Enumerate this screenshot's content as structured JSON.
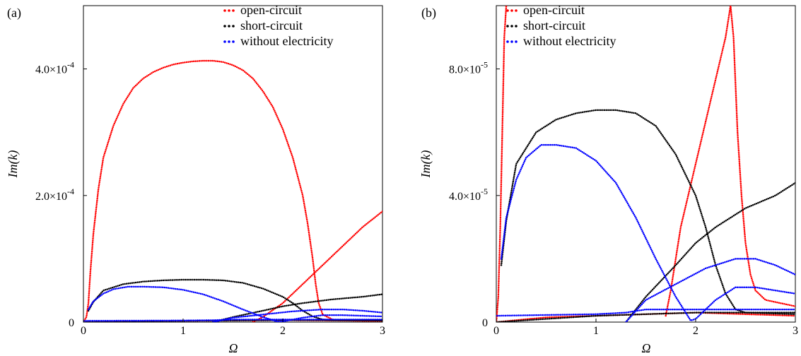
{
  "chart_data": [
    {
      "type": "scatter",
      "panel_label": "(a)",
      "xlabel": "Ω",
      "ylabel": "Im(k)",
      "xlim": [
        0,
        3
      ],
      "ylim": [
        0,
        0.0005
      ],
      "legend_position": "top-right",
      "xticks": [
        {
          "value": 0,
          "label": "0"
        },
        {
          "value": 1,
          "label": "1"
        },
        {
          "value": 2,
          "label": "2"
        },
        {
          "value": 3,
          "label": "3"
        }
      ],
      "yticks": [
        {
          "value": 0,
          "label": "0"
        },
        {
          "value": 0.0002,
          "label": "2.0×10",
          "exp": "-4"
        },
        {
          "value": 0.0004,
          "label": "4.0×10",
          "exp": "-4"
        }
      ],
      "series": [
        {
          "name": "open-circuit",
          "color": "#ff0000",
          "curves": [
            [
              [
                0,
                0
              ],
              [
                0.03,
                8e-06
              ],
              [
                0.05,
                3e-05
              ],
              [
                0.07,
                8e-05
              ],
              [
                0.1,
                0.00014
              ],
              [
                0.15,
                0.00021
              ],
              [
                0.2,
                0.00026
              ],
              [
                0.3,
                0.00031
              ],
              [
                0.4,
                0.000345
              ],
              [
                0.5,
                0.00037
              ],
              [
                0.6,
                0.000385
              ],
              [
                0.7,
                0.000395
              ],
              [
                0.8,
                0.000402
              ],
              [
                0.9,
                0.000407
              ],
              [
                1.0,
                0.00041
              ],
              [
                1.1,
                0.000412
              ],
              [
                1.2,
                0.000413
              ],
              [
                1.3,
                0.000413
              ],
              [
                1.4,
                0.000411
              ],
              [
                1.5,
                0.000406
              ],
              [
                1.6,
                0.000398
              ],
              [
                1.7,
                0.000385
              ],
              [
                1.8,
                0.000365
              ],
              [
                1.9,
                0.00034
              ],
              [
                2.0,
                0.000305
              ],
              [
                2.1,
                0.00026
              ],
              [
                2.2,
                0.0002
              ],
              [
                2.25,
                0.000155
              ],
              [
                2.3,
                0.0001
              ],
              [
                2.33,
                6e-05
              ],
              [
                2.36,
                3e-05
              ],
              [
                2.4,
                1.2e-05
              ],
              [
                2.5,
                4e-06
              ],
              [
                2.6,
                2.5e-06
              ],
              [
                2.8,
                2e-06
              ],
              [
                3.0,
                2e-06
              ]
            ],
            [
              [
                1.7,
                0
              ],
              [
                1.8,
                8e-06
              ],
              [
                2.0,
                3e-05
              ],
              [
                2.2,
                6e-05
              ],
              [
                2.4,
                9e-05
              ],
              [
                2.6,
                0.00012
              ],
              [
                2.8,
                0.00015
              ],
              [
                3.0,
                0.000175
              ]
            ],
            [
              [
                0,
                0
              ],
              [
                0.5,
                1.5e-06
              ],
              [
                1.0,
                2e-06
              ],
              [
                1.5,
                2.5e-06
              ],
              [
                2.0,
                3e-06
              ],
              [
                2.5,
                2.5e-06
              ],
              [
                3.0,
                2e-06
              ]
            ]
          ]
        },
        {
          "name": "short-circuit",
          "color": "#000000",
          "curves": [
            [
              [
                0.05,
                1.8e-05
              ],
              [
                0.1,
                3.2e-05
              ],
              [
                0.2,
                5e-05
              ],
              [
                0.4,
                6e-05
              ],
              [
                0.6,
                6.4e-05
              ],
              [
                0.8,
                6.6e-05
              ],
              [
                1.0,
                6.7e-05
              ],
              [
                1.2,
                6.7e-05
              ],
              [
                1.4,
                6.6e-05
              ],
              [
                1.6,
                6.2e-05
              ],
              [
                1.8,
                5.3e-05
              ],
              [
                2.0,
                4e-05
              ],
              [
                2.1,
                3e-05
              ],
              [
                2.2,
                1.8e-05
              ],
              [
                2.3,
                9e-06
              ],
              [
                2.4,
                4e-06
              ],
              [
                2.5,
                3e-06
              ],
              [
                3.0,
                3e-06
              ]
            ],
            [
              [
                1.3,
                0
              ],
              [
                1.5,
                8e-06
              ],
              [
                1.8,
                1.8e-05
              ],
              [
                2.0,
                2.5e-05
              ],
              [
                2.2,
                3e-05
              ],
              [
                2.5,
                3.6e-05
              ],
              [
                2.8,
                4e-05
              ],
              [
                3.0,
                4.4e-05
              ]
            ],
            [
              [
                0,
                0
              ],
              [
                1.0,
                2e-06
              ],
              [
                1.5,
                2.5e-06
              ],
              [
                2.0,
                3e-06
              ],
              [
                2.5,
                3e-06
              ],
              [
                3.0,
                2.5e-06
              ]
            ]
          ]
        },
        {
          "name": "without electricity",
          "color": "#0000ff",
          "curves": [
            [
              [
                0.05,
                2e-05
              ],
              [
                0.1,
                3.3e-05
              ],
              [
                0.2,
                4.5e-05
              ],
              [
                0.3,
                5.2e-05
              ],
              [
                0.45,
                5.6e-05
              ],
              [
                0.6,
                5.6e-05
              ],
              [
                0.8,
                5.5e-05
              ],
              [
                1.0,
                5.1e-05
              ],
              [
                1.2,
                4.4e-05
              ],
              [
                1.4,
                3.3e-05
              ],
              [
                1.6,
                2e-05
              ],
              [
                1.8,
                8e-06
              ],
              [
                1.95,
                5e-07
              ],
              [
                2.0,
                1e-06
              ],
              [
                2.1,
                4e-06
              ],
              [
                2.2,
                7e-06
              ],
              [
                2.4,
                1.1e-05
              ],
              [
                2.6,
                1.1e-05
              ],
              [
                2.8,
                1e-05
              ],
              [
                3.0,
                9e-06
              ]
            ],
            [
              [
                1.3,
                0
              ],
              [
                1.5,
                7e-06
              ],
              [
                1.8,
                1.2e-05
              ],
              [
                2.1,
                1.7e-05
              ],
              [
                2.4,
                2e-05
              ],
              [
                2.6,
                2e-05
              ],
              [
                2.8,
                1.8e-05
              ],
              [
                3.0,
                1.5e-05
              ]
            ],
            [
              [
                0,
                2e-06
              ],
              [
                1.0,
                2.5e-06
              ],
              [
                1.3,
                3e-06
              ],
              [
                1.5,
                4e-06
              ],
              [
                2.0,
                4e-06
              ],
              [
                2.5,
                4e-06
              ],
              [
                3.0,
                4e-06
              ]
            ]
          ]
        }
      ]
    },
    {
      "type": "scatter",
      "panel_label": "(b)",
      "xlabel": "Ω",
      "ylabel": "Im(k)",
      "xlim": [
        0,
        3
      ],
      "ylim": [
        0,
        0.0001
      ],
      "legend_position": "top-right",
      "xticks": [
        {
          "value": 0,
          "label": "0"
        },
        {
          "value": 1,
          "label": "1"
        },
        {
          "value": 2,
          "label": "2"
        },
        {
          "value": 3,
          "label": "3"
        }
      ],
      "yticks": [
        {
          "value": 0,
          "label": "0"
        },
        {
          "value": 4e-05,
          "label": "4.0×10",
          "exp": "-5"
        },
        {
          "value": 8e-05,
          "label": "8.0×10",
          "exp": "-5"
        }
      ],
      "series": [
        {
          "name": "open-circuit",
          "color": "#ff0000",
          "curves": [
            [
              [
                0,
                0
              ],
              [
                0.02,
                8e-06
              ],
              [
                0.04,
                3e-05
              ],
              [
                0.06,
                6e-05
              ],
              [
                0.08,
                9e-05
              ],
              [
                0.1,
                0.0001
              ]
            ],
            [
              [
                1.7,
                2e-06
              ],
              [
                1.75,
                1e-05
              ],
              [
                1.85,
                3e-05
              ],
              [
                2.0,
                5e-05
              ],
              [
                2.15,
                7e-05
              ],
              [
                2.3,
                9e-05
              ],
              [
                2.35,
                0.0001
              ]
            ],
            [
              [
                2.35,
                0.0001
              ],
              [
                2.38,
                9e-05
              ],
              [
                2.42,
                6e-05
              ],
              [
                2.46,
                4e-05
              ],
              [
                2.5,
                2.5e-05
              ],
              [
                2.55,
                1.5e-05
              ],
              [
                2.6,
                1e-05
              ],
              [
                2.7,
                7e-06
              ],
              [
                3.0,
                5e-06
              ]
            ],
            [
              [
                0,
                0
              ],
              [
                0.5,
                1.5e-06
              ],
              [
                1.0,
                2e-06
              ],
              [
                1.5,
                2.5e-06
              ],
              [
                2.0,
                3e-06
              ],
              [
                2.5,
                2.5e-06
              ],
              [
                3.0,
                2e-06
              ]
            ]
          ]
        },
        {
          "name": "short-circuit",
          "color": "#000000",
          "curves": [
            [
              [
                0.05,
                1.8e-05
              ],
              [
                0.1,
                3.2e-05
              ],
              [
                0.2,
                5e-05
              ],
              [
                0.4,
                6e-05
              ],
              [
                0.6,
                6.4e-05
              ],
              [
                0.8,
                6.6e-05
              ],
              [
                1.0,
                6.7e-05
              ],
              [
                1.2,
                6.7e-05
              ],
              [
                1.4,
                6.6e-05
              ],
              [
                1.6,
                6.2e-05
              ],
              [
                1.8,
                5.3e-05
              ],
              [
                2.0,
                4e-05
              ],
              [
                2.1,
                3e-05
              ],
              [
                2.2,
                1.8e-05
              ],
              [
                2.3,
                9e-06
              ],
              [
                2.4,
                4e-06
              ],
              [
                2.5,
                3e-06
              ],
              [
                3.0,
                3e-06
              ]
            ],
            [
              [
                1.3,
                0
              ],
              [
                1.5,
                8e-06
              ],
              [
                1.8,
                1.8e-05
              ],
              [
                2.0,
                2.5e-05
              ],
              [
                2.2,
                3e-05
              ],
              [
                2.5,
                3.6e-05
              ],
              [
                2.8,
                4e-05
              ],
              [
                3.0,
                4.4e-05
              ]
            ],
            [
              [
                0,
                0
              ],
              [
                1.0,
                2e-06
              ],
              [
                1.5,
                2.5e-06
              ],
              [
                2.0,
                3e-06
              ],
              [
                2.5,
                3e-06
              ],
              [
                3.0,
                2.5e-06
              ]
            ]
          ]
        },
        {
          "name": "without electricity",
          "color": "#0000ff",
          "curves": [
            [
              [
                0.05,
                2e-05
              ],
              [
                0.1,
                3.3e-05
              ],
              [
                0.2,
                4.5e-05
              ],
              [
                0.3,
                5.2e-05
              ],
              [
                0.45,
                5.6e-05
              ],
              [
                0.6,
                5.6e-05
              ],
              [
                0.8,
                5.5e-05
              ],
              [
                1.0,
                5.1e-05
              ],
              [
                1.2,
                4.4e-05
              ],
              [
                1.4,
                3.3e-05
              ],
              [
                1.6,
                2e-05
              ],
              [
                1.8,
                8e-06
              ],
              [
                1.95,
                5e-07
              ],
              [
                2.0,
                1e-06
              ],
              [
                2.1,
                4e-06
              ],
              [
                2.2,
                7e-06
              ],
              [
                2.4,
                1.1e-05
              ],
              [
                2.6,
                1.1e-05
              ],
              [
                2.8,
                1e-05
              ],
              [
                3.0,
                9e-06
              ]
            ],
            [
              [
                1.3,
                0
              ],
              [
                1.5,
                7e-06
              ],
              [
                1.8,
                1.2e-05
              ],
              [
                2.1,
                1.7e-05
              ],
              [
                2.4,
                2e-05
              ],
              [
                2.6,
                2e-05
              ],
              [
                2.8,
                1.8e-05
              ],
              [
                3.0,
                1.5e-05
              ]
            ],
            [
              [
                0,
                2e-06
              ],
              [
                1.0,
                2.5e-06
              ],
              [
                1.3,
                3e-06
              ],
              [
                1.5,
                4e-06
              ],
              [
                2.0,
                4e-06
              ],
              [
                2.5,
                4e-06
              ],
              [
                3.0,
                4e-06
              ]
            ]
          ]
        }
      ]
    }
  ]
}
